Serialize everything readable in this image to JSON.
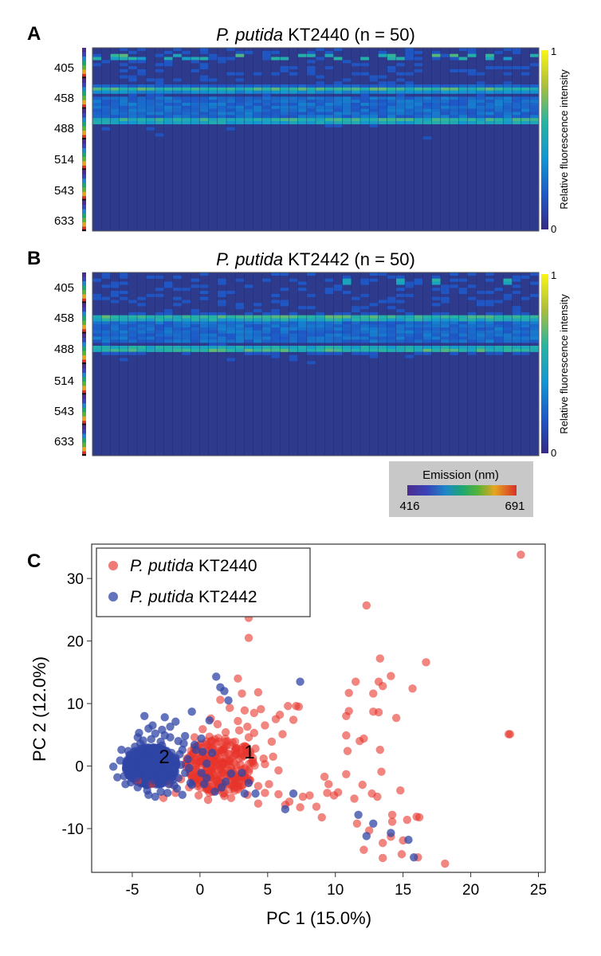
{
  "colors": {
    "strain_kt2440": "#e8342c",
    "strain_kt2442": "#3046a6",
    "heatmap_bg": "#2e3a8c",
    "emission_legend_bg": "#c8c8c8"
  },
  "emission_legend": {
    "title": "Emission (nm)",
    "min_label": "416",
    "max_label": "691"
  },
  "chart_data": [
    {
      "type": "heatmap",
      "panel": "A",
      "title_italic": "P. putida",
      "title_rest": " KT2440 (n = 50)",
      "ylabel_ticks": [
        "405",
        "458",
        "488",
        "514",
        "543",
        "633"
      ],
      "n_samples": 50,
      "colorbar": {
        "label": "Relative fluorescence intensity",
        "min": "0",
        "max": "1"
      },
      "bright_bands": [
        {
          "row": 0.04,
          "strength": 0.85,
          "columns": "sparse"
        },
        {
          "row": 0.22,
          "strength": 0.75,
          "columns": "all"
        },
        {
          "row": 0.39,
          "strength": 0.8,
          "columns": "all"
        }
      ]
    },
    {
      "type": "heatmap",
      "panel": "B",
      "title_italic": "P. putida",
      "title_rest": " KT2442 (n = 50)",
      "ylabel_ticks": [
        "405",
        "458",
        "488",
        "514",
        "543",
        "633"
      ],
      "n_samples": 50,
      "colorbar": {
        "label": "Relative fluorescence intensity",
        "min": "0",
        "max": "1"
      },
      "bright_bands": [
        {
          "row": 0.04,
          "strength": 0.8,
          "columns": "few"
        },
        {
          "row": 0.24,
          "strength": 0.85,
          "columns": "all"
        },
        {
          "row": 0.41,
          "strength": 0.85,
          "columns": "all"
        }
      ]
    },
    {
      "type": "scatter",
      "panel": "C",
      "xlabel": "PC 1 (15.0%)",
      "ylabel": "PC 2 (12.0%)",
      "xlim": [
        -8,
        25.5
      ],
      "ylim": [
        -17,
        35.5
      ],
      "xticks": [
        "-5",
        "0",
        "5",
        "10",
        "15",
        "20",
        "25"
      ],
      "yticks": [
        "-10",
        "0",
        "10",
        "20",
        "30"
      ],
      "annotations": [
        "1",
        "2"
      ],
      "series": [
        {
          "name_italic": "P. putida",
          "name_rest": " KT2440",
          "points": [
            [
              23.7,
              33.8
            ],
            [
              12.3,
              25.7
            ],
            [
              3.6,
              23.7
            ],
            [
              3.6,
              20.5
            ],
            [
              16.7,
              16.6
            ],
            [
              13.3,
              17.2
            ],
            [
              15.7,
              12.4
            ],
            [
              11.5,
              13.5
            ],
            [
              13.2,
              13.5
            ],
            [
              14.1,
              14.4
            ],
            [
              11.0,
              11.7
            ],
            [
              12.8,
              11.6
            ],
            [
              13.5,
              12.8
            ],
            [
              2.8,
              14.0
            ],
            [
              7.3,
              9.5
            ],
            [
              4.3,
              11.8
            ],
            [
              10.8,
              4.9
            ],
            [
              11.8,
              4.0
            ],
            [
              10.9,
              2.4
            ],
            [
              13.3,
              2.6
            ],
            [
              22.8,
              5.1
            ],
            [
              22.9,
              5.1
            ],
            [
              12.1,
              4.4
            ],
            [
              11.0,
              8.8
            ],
            [
              10.8,
              8.0
            ],
            [
              13.2,
              8.6
            ],
            [
              14.5,
              7.7
            ],
            [
              12.8,
              8.7
            ],
            [
              4.3,
              -6.0
            ],
            [
              5.8,
              -4.5
            ],
            [
              6.3,
              -6.2
            ],
            [
              7.4,
              -6.6
            ],
            [
              8.1,
              -4.7
            ],
            [
              8.6,
              -6.5
            ],
            [
              9.4,
              -4.3
            ],
            [
              9.2,
              -1.7
            ],
            [
              9.5,
              -2.9
            ],
            [
              10.2,
              -4.2
            ],
            [
              10.8,
              -1.3
            ],
            [
              11.4,
              -5.2
            ],
            [
              12.0,
              -3.0
            ],
            [
              12.7,
              -4.4
            ],
            [
              13.4,
              -0.9
            ],
            [
              13.1,
              -4.9
            ],
            [
              14.8,
              -3.9
            ],
            [
              15.3,
              -8.6
            ],
            [
              14.2,
              -8.9
            ],
            [
              13.5,
              -12.3
            ],
            [
              14.1,
              -11.3
            ],
            [
              15.0,
              -11.9
            ],
            [
              16.0,
              -8.1
            ],
            [
              16.2,
              -8.2
            ],
            [
              16.1,
              -14.6
            ],
            [
              18.1,
              -15.6
            ],
            [
              12.1,
              -13.4
            ],
            [
              13.5,
              -14.7
            ],
            [
              14.9,
              -14.1
            ],
            [
              14.2,
              -7.8
            ],
            [
              11.6,
              -9.2
            ],
            [
              12.5,
              -10.3
            ],
            [
              9.9,
              -4.7
            ],
            [
              9.0,
              -8.2
            ],
            [
              7.6,
              -4.9
            ],
            [
              6.6,
              -5.7
            ],
            [
              4.8,
              -4.3
            ],
            [
              5.1,
              -2.9
            ],
            [
              5.8,
              -0.7
            ],
            [
              4.7,
              1.2
            ],
            [
              4.1,
              2.8
            ],
            [
              5.3,
              3.9
            ],
            [
              6.1,
              5.1
            ],
            [
              3.5,
              6.3
            ],
            [
              2.8,
              7.2
            ],
            [
              4.0,
              8.5
            ],
            [
              4.5,
              9.1
            ],
            [
              6.5,
              9.6
            ],
            [
              5.6,
              7.5
            ],
            [
              7.1,
              9.6
            ],
            [
              6.9,
              7.4
            ],
            [
              5.9,
              8.2
            ],
            [
              3.6,
              4.6
            ],
            [
              4.0,
              5.3
            ],
            [
              2.4,
              3.8
            ],
            [
              1.9,
              5.4
            ],
            [
              1.3,
              6.7
            ],
            [
              0.8,
              7.6
            ],
            [
              2.2,
              9.3
            ],
            [
              3.1,
              11.6
            ],
            [
              1.5,
              10.6
            ],
            [
              4.8,
              6.5
            ],
            [
              3.3,
              3.2
            ],
            [
              2.7,
              1.9
            ],
            [
              3.0,
              0.2
            ],
            [
              3.6,
              -0.9
            ],
            [
              4.3,
              -3.2
            ],
            [
              3.5,
              -4.6
            ],
            [
              2.8,
              -3.1
            ],
            [
              2.0,
              -1.6
            ],
            [
              1.5,
              -0.4
            ],
            [
              1.1,
              0.8
            ],
            [
              0.5,
              1.8
            ],
            [
              0.9,
              2.8
            ],
            [
              1.8,
              2.7
            ],
            [
              2.2,
              0.9
            ],
            [
              1.6,
              -2.7
            ],
            [
              0.9,
              -4.1
            ],
            [
              0.2,
              -2.6
            ],
            [
              -0.2,
              -0.9
            ],
            [
              0.0,
              0.5
            ],
            [
              -0.5,
              2.1
            ],
            [
              0.4,
              3.5
            ],
            [
              -0.8,
              -3.4
            ],
            [
              -0.1,
              -4.7
            ],
            [
              0.6,
              -5.4
            ],
            [
              -1.4,
              -2.1
            ],
            [
              -2.2,
              -2.9
            ],
            [
              -1.8,
              -4.3
            ],
            [
              -2.7,
              -5.1
            ],
            [
              0.9,
              -0.8
            ],
            [
              1.2,
              1.6
            ],
            [
              1.7,
              0.3
            ],
            [
              2.3,
              -0.2
            ],
            [
              2.6,
              2.6
            ],
            [
              1.4,
              3.9
            ],
            [
              0.7,
              4.7
            ],
            [
              0.2,
              5.9
            ],
            [
              3.9,
              0.8
            ],
            [
              4.8,
              0.3
            ],
            [
              5.4,
              1.5
            ],
            [
              0.3,
              -1.3
            ],
            [
              -0.6,
              -1.8
            ],
            [
              1.8,
              -4.8
            ],
            [
              2.3,
              -5.1
            ],
            [
              -3.6,
              -2.9
            ],
            [
              -4.6,
              -2.4
            ],
            [
              -0.4,
              4.6
            ],
            [
              2.9,
              5.7
            ],
            [
              3.3,
              8.9
            ]
          ]
        },
        {
          "name_italic": "P. putida",
          "name_rest": " KT2442",
          "points": [
            [
              -6.4,
              -0.1
            ],
            [
              -5.9,
              0.9
            ],
            [
              -5.6,
              -1.6
            ],
            [
              -5.2,
              1.8
            ],
            [
              -5.1,
              -2.6
            ],
            [
              -4.8,
              3.1
            ],
            [
              -4.6,
              -3.4
            ],
            [
              -4.2,
              4.1
            ],
            [
              -3.8,
              -4.6
            ],
            [
              -3.3,
              5.2
            ],
            [
              -2.9,
              -4.1
            ],
            [
              -2.2,
              4.6
            ],
            [
              -1.7,
              -3.6
            ],
            [
              -1.2,
              3.6
            ],
            [
              -0.7,
              -2.7
            ],
            [
              -0.3,
              2.6
            ],
            [
              0.1,
              -1.1
            ],
            [
              0.5,
              0.4
            ],
            [
              -5.4,
              0.6
            ],
            [
              -5.0,
              -0.8
            ],
            [
              -4.9,
              1.4
            ],
            [
              -4.7,
              -1.9
            ],
            [
              -4.5,
              2.3
            ],
            [
              -4.3,
              -0.2
            ],
            [
              -4.1,
              1.0
            ],
            [
              -3.9,
              -1.3
            ],
            [
              -3.7,
              2.7
            ],
            [
              -3.5,
              0.3
            ],
            [
              -3.4,
              -2.3
            ],
            [
              -3.2,
              1.6
            ],
            [
              -3.0,
              -0.7
            ],
            [
              -2.8,
              3.3
            ],
            [
              -2.7,
              -1.6
            ],
            [
              -2.5,
              0.9
            ],
            [
              -2.3,
              -2.9
            ],
            [
              -2.1,
              2.1
            ],
            [
              -1.9,
              -0.4
            ],
            [
              -1.8,
              1.3
            ],
            [
              -1.6,
              -1.9
            ],
            [
              -1.4,
              0.2
            ],
            [
              -1.3,
              2.6
            ],
            [
              -1.1,
              -1.1
            ],
            [
              -0.9,
              1.1
            ],
            [
              -0.8,
              -0.3
            ],
            [
              -4.4,
              3.6
            ],
            [
              -3.6,
              4.3
            ],
            [
              -2.6,
              4.9
            ],
            [
              -3.9,
              -3.9
            ],
            [
              -2.9,
              3.9
            ],
            [
              -1.9,
              -3.1
            ],
            [
              -4.8,
              -1.4
            ],
            [
              -5.3,
              2.4
            ],
            [
              -4.0,
              -2.8
            ],
            [
              -3.1,
              2.9
            ],
            [
              -2.0,
              -2.2
            ],
            [
              -1.5,
              1.9
            ],
            [
              -3.8,
              6.0
            ],
            [
              -2.8,
              5.8
            ],
            [
              -4.1,
              8.0
            ],
            [
              -2.6,
              7.8
            ],
            [
              -1.8,
              7.1
            ],
            [
              -0.6,
              8.7
            ],
            [
              0.7,
              7.3
            ],
            [
              1.5,
              12.6
            ],
            [
              1.8,
              12.0
            ],
            [
              1.2,
              14.3
            ],
            [
              2.1,
              10.5
            ],
            [
              7.4,
              13.5
            ],
            [
              -1.1,
              4.8
            ],
            [
              0.1,
              4.4
            ],
            [
              0.5,
              -1.9
            ],
            [
              1.6,
              -3.4
            ],
            [
              1.1,
              -4.1
            ],
            [
              2.3,
              -1.2
            ],
            [
              3.1,
              -1.1
            ],
            [
              3.6,
              -2.7
            ],
            [
              3.3,
              -4.4
            ],
            [
              4.1,
              -4.4
            ],
            [
              6.9,
              -4.4
            ],
            [
              6.3,
              -6.9
            ],
            [
              11.7,
              -7.8
            ],
            [
              12.3,
              -11.2
            ],
            [
              12.8,
              -9.2
            ],
            [
              14.1,
              -10.7
            ],
            [
              15.4,
              -11.8
            ],
            [
              15.8,
              -14.6
            ],
            [
              1.9,
              -2.5
            ],
            [
              0.2,
              2.3
            ],
            [
              0.9,
              2.1
            ],
            [
              -5.8,
              2.6
            ],
            [
              -6.1,
              -1.8
            ],
            [
              -5.5,
              -2.9
            ],
            [
              -4.6,
              4.6
            ],
            [
              -3.3,
              -4.9
            ],
            [
              -2.4,
              -4.3
            ],
            [
              -1.3,
              -4.6
            ],
            [
              -1.6,
              4.0
            ],
            [
              -0.4,
              3.4
            ],
            [
              -0.6,
              -3.0
            ],
            [
              0.3,
              -2.9
            ],
            [
              -4.5,
              5.3
            ],
            [
              -3.5,
              6.5
            ],
            [
              -2.2,
              6.3
            ],
            [
              -2.4,
              0.4
            ],
            [
              -3.6,
              -1.0
            ],
            [
              -4.2,
              0.7
            ],
            [
              -3.0,
              1.5
            ],
            [
              -2.0,
              -0.8
            ]
          ]
        }
      ]
    }
  ]
}
